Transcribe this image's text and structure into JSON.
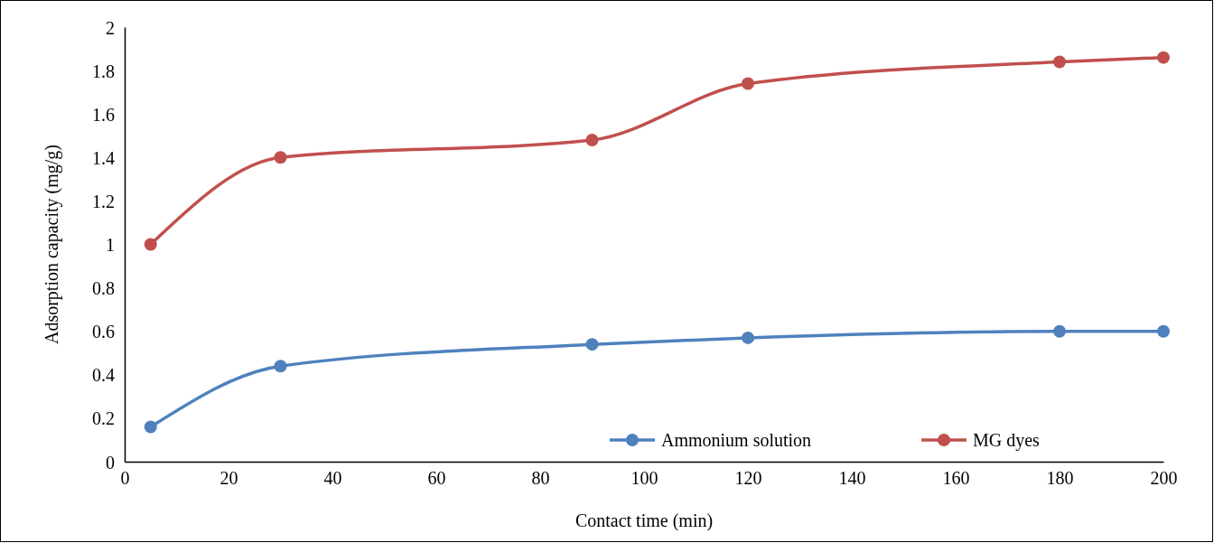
{
  "chart_data": {
    "type": "line",
    "xlabel": "Contact time (min)",
    "ylabel": "Adsorption capacity (mg/g)",
    "x": [
      5,
      30,
      90,
      120,
      180,
      200
    ],
    "series": [
      {
        "name": "Ammonium solution",
        "color": "#4f81bd",
        "values": [
          0.16,
          0.44,
          0.54,
          0.57,
          0.6,
          0.6
        ]
      },
      {
        "name": "MG dyes",
        "color": "#c0504d",
        "values": [
          1.0,
          1.4,
          1.48,
          1.74,
          1.84,
          1.86
        ]
      }
    ],
    "xlim": [
      0,
      200
    ],
    "xticks": [
      0,
      20,
      40,
      60,
      80,
      100,
      120,
      140,
      160,
      180,
      200
    ],
    "ylim": [
      0,
      2
    ],
    "yticks": [
      0,
      0.2,
      0.4,
      0.6,
      0.8,
      1,
      1.2,
      1.4,
      1.6,
      1.8,
      2
    ],
    "grid": false,
    "legend": "bottom right",
    "marker": "circle",
    "line_style": "solid"
  }
}
